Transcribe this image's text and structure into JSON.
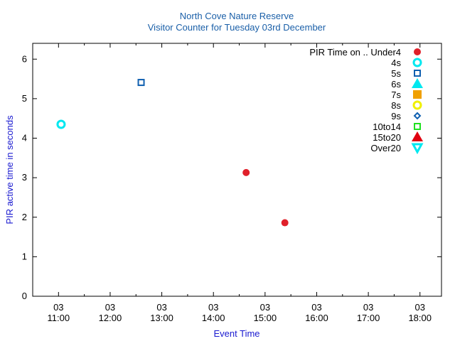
{
  "chart_data": {
    "type": "scatter",
    "title": "North Cove Nature Reserve",
    "subtitle": "Visitor Counter for Tuesday 03rd December",
    "xlabel": "Event Time",
    "ylabel": "PIR active time in seconds",
    "xlim": [
      "10:30",
      "18:25"
    ],
    "ylim": [
      0,
      6.4
    ],
    "y_ticks": [
      0,
      1,
      2,
      3,
      4,
      5,
      6
    ],
    "x_ticks": [
      {
        "time": "11:00",
        "day": "03",
        "label": "11:00"
      },
      {
        "time": "12:00",
        "day": "03",
        "label": "12:00"
      },
      {
        "time": "13:00",
        "day": "03",
        "label": "13:00"
      },
      {
        "time": "14:00",
        "day": "03",
        "label": "14:00"
      },
      {
        "time": "15:00",
        "day": "03",
        "label": "15:00"
      },
      {
        "time": "16:00",
        "day": "03",
        "label": "16:00"
      },
      {
        "time": "17:00",
        "day": "03",
        "label": "17:00"
      },
      {
        "time": "18:00",
        "day": "03",
        "label": "18:00"
      }
    ],
    "grid": false,
    "legend_position": "top-right",
    "legend_title": "PIR Time on ..",
    "series": [
      {
        "name": "Under4",
        "marker": "filled-circle",
        "color": "#e0202a",
        "points": [
          {
            "x": "14:38",
            "y": 3.13
          },
          {
            "x": "15:23",
            "y": 1.86
          }
        ]
      },
      {
        "name": "4s",
        "marker": "open-circle",
        "color": "#00e8f0",
        "points": [
          {
            "x": "11:03",
            "y": 4.35
          }
        ]
      },
      {
        "name": "5s",
        "marker": "open-square",
        "color": "#1060b0",
        "points": [
          {
            "x": "12:36",
            "y": 5.41
          }
        ]
      },
      {
        "name": "6s",
        "marker": "filled-triangle-up",
        "color": "#00e8f0",
        "points": []
      },
      {
        "name": "7s",
        "marker": "filled-square",
        "color": "#f0a000",
        "points": []
      },
      {
        "name": "8s",
        "marker": "open-circle",
        "color": "#f0f000",
        "points": []
      },
      {
        "name": "9s",
        "marker": "open-diamond",
        "color": "#1060b0",
        "points": []
      },
      {
        "name": "10to14",
        "marker": "open-square",
        "color": "#20e020",
        "points": []
      },
      {
        "name": "15to20",
        "marker": "filled-triangle-up",
        "color": "#e00010",
        "points": []
      },
      {
        "name": "Over20",
        "marker": "open-triangle-down",
        "color": "#00e8f0",
        "points": []
      }
    ]
  }
}
